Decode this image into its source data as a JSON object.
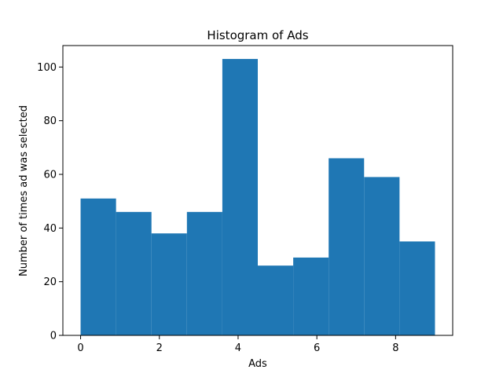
{
  "chart_data": {
    "type": "bar",
    "title": "Histogram of Ads",
    "xlabel": "Ads",
    "ylabel": "Number of times ad was selected",
    "bin_edges": [
      0,
      0.9,
      1.8,
      2.7,
      3.6,
      4.5,
      5.4,
      6.3,
      7.2,
      8.1,
      9.0
    ],
    "values": [
      51,
      46,
      38,
      46,
      103,
      26,
      29,
      66,
      59,
      35
    ],
    "xlim": [
      -0.45,
      9.45
    ],
    "ylim": [
      0,
      108
    ],
    "xticks": [
      0,
      2,
      4,
      6,
      8
    ],
    "yticks": [
      0,
      20,
      40,
      60,
      80,
      100
    ],
    "bar_color": "#1f77b4",
    "grid": false
  }
}
